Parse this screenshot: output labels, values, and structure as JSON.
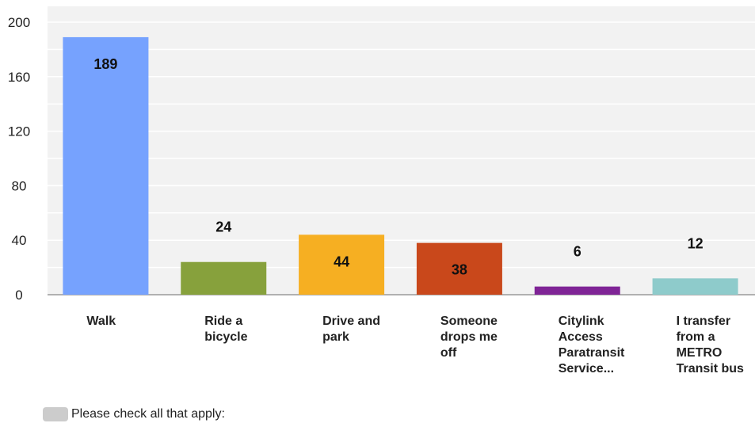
{
  "chart_data": {
    "type": "bar",
    "categories": [
      [
        "Walk"
      ],
      [
        "Ride a",
        "bicycle"
      ],
      [
        "Drive and",
        "park"
      ],
      [
        "Someone",
        "drops me",
        "off"
      ],
      [
        "Citylink",
        "Access",
        "Paratransit",
        "Service..."
      ],
      [
        "I transfer",
        "from a",
        "METRO",
        "Transit bus"
      ]
    ],
    "values": [
      189,
      24,
      44,
      38,
      6,
      12
    ],
    "colors": [
      "#76a2fe",
      "#87a13c",
      "#f6af22",
      "#c9481b",
      "#7f2496",
      "#8ecbcb"
    ],
    "ylim": [
      0,
      200
    ],
    "yticks": [
      0,
      40,
      80,
      120,
      160,
      200
    ],
    "grid": true,
    "data_labels": true,
    "legend": {
      "position": "bottom-left",
      "label": "Please check all that apply:",
      "swatch_color": "#cccccc"
    }
  }
}
